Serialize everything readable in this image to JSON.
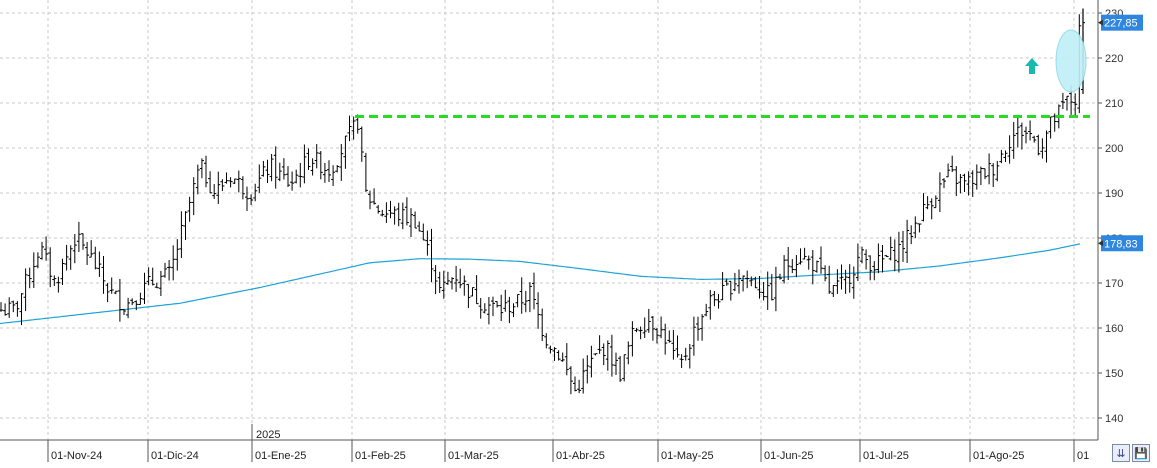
{
  "chart_data": {
    "type": "ohlc",
    "x_ticks": [
      "01-Nov-24",
      "01-Dic-24",
      "01-Ene-25",
      "01-Feb-25",
      "01-Mar-25",
      "01-Abr-25",
      "01-May-25",
      "01-Jun-25",
      "01-Jul-25",
      "01-Ago-25",
      "01"
    ],
    "year_marker": "2025",
    "y_ticks": [
      "140",
      "150",
      "160",
      "170",
      "180",
      "190",
      "200",
      "210",
      "220",
      "230"
    ],
    "ylim": [
      136,
      232
    ],
    "grid": true,
    "last_price": "227,85",
    "moving_average_last": "178,83",
    "resistance_level": 207,
    "colors": {
      "bars": "#000000",
      "moving_average": "#1fa3d6",
      "resistance": "#22dd22",
      "price_tag": "#2e86de",
      "ma_tag": "#2e86de",
      "highlight_ellipse": "#bfeff7",
      "arrow": "#1ab9b0"
    },
    "price_series_anchors": [
      [
        0,
        164
      ],
      [
        15,
        164
      ],
      [
        40,
        178
      ],
      [
        55,
        170
      ],
      [
        75,
        180
      ],
      [
        90,
        176
      ],
      [
        110,
        168
      ],
      [
        125,
        165
      ],
      [
        150,
        170
      ],
      [
        170,
        172
      ],
      [
        185,
        184
      ],
      [
        200,
        196
      ],
      [
        215,
        190
      ],
      [
        230,
        194
      ],
      [
        250,
        190
      ],
      [
        270,
        196
      ],
      [
        290,
        192
      ],
      [
        310,
        198
      ],
      [
        330,
        195
      ],
      [
        350,
        203
      ],
      [
        358,
        206
      ],
      [
        365,
        190
      ],
      [
        380,
        186
      ],
      [
        400,
        185
      ],
      [
        415,
        184
      ],
      [
        430,
        176
      ],
      [
        440,
        168
      ],
      [
        455,
        172
      ],
      [
        470,
        168
      ],
      [
        480,
        166
      ],
      [
        500,
        164
      ],
      [
        520,
        166
      ],
      [
        530,
        168
      ],
      [
        545,
        158
      ],
      [
        560,
        154
      ],
      [
        575,
        146
      ],
      [
        590,
        152
      ],
      [
        605,
        156
      ],
      [
        620,
        150
      ],
      [
        635,
        160
      ],
      [
        650,
        162
      ],
      [
        665,
        158
      ],
      [
        680,
        151
      ],
      [
        695,
        160
      ],
      [
        710,
        166
      ],
      [
        725,
        168
      ],
      [
        740,
        172
      ],
      [
        755,
        170
      ],
      [
        770,
        167
      ],
      [
        785,
        174
      ],
      [
        800,
        176
      ],
      [
        815,
        174
      ],
      [
        830,
        168
      ],
      [
        845,
        170
      ],
      [
        860,
        176
      ],
      [
        875,
        174
      ],
      [
        890,
        176
      ],
      [
        905,
        179
      ],
      [
        920,
        185
      ],
      [
        935,
        190
      ],
      [
        950,
        194
      ],
      [
        965,
        192
      ],
      [
        980,
        194
      ],
      [
        995,
        196
      ],
      [
        1010,
        202
      ],
      [
        1020,
        204
      ],
      [
        1030,
        203
      ],
      [
        1040,
        200
      ],
      [
        1050,
        205
      ],
      [
        1060,
        208
      ],
      [
        1068,
        211
      ],
      [
        1075,
        210
      ],
      [
        1080,
        228
      ]
    ],
    "moving_average_anchors": [
      [
        0,
        161
      ],
      [
        60,
        162.5
      ],
      [
        120,
        164
      ],
      [
        180,
        165.5
      ],
      [
        260,
        169
      ],
      [
        320,
        172
      ],
      [
        370,
        174.5
      ],
      [
        420,
        175.4
      ],
      [
        470,
        175.3
      ],
      [
        520,
        174.8
      ],
      [
        580,
        173.2
      ],
      [
        640,
        171.5
      ],
      [
        700,
        170.8
      ],
      [
        760,
        171
      ],
      [
        820,
        171.8
      ],
      [
        880,
        172.5
      ],
      [
        940,
        173.8
      ],
      [
        1000,
        175.6
      ],
      [
        1050,
        177.3
      ],
      [
        1082,
        178.8
      ]
    ]
  }
}
